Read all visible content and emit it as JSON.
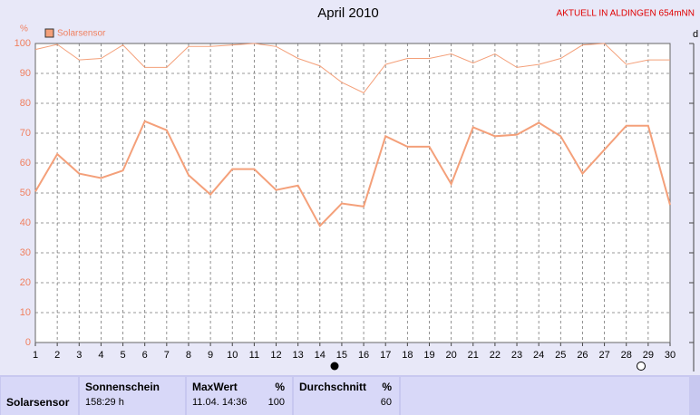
{
  "chart_data": {
    "type": "line",
    "title": "April 2010",
    "ylabel": "%",
    "y2label": "d",
    "x": [
      1,
      2,
      3,
      4,
      5,
      6,
      7,
      8,
      9,
      10,
      11,
      12,
      13,
      14,
      15,
      16,
      17,
      18,
      19,
      20,
      21,
      22,
      23,
      24,
      25,
      26,
      27,
      28,
      29,
      30
    ],
    "xlim": [
      1,
      30
    ],
    "xticks": [
      1,
      2,
      3,
      4,
      5,
      6,
      7,
      8,
      9,
      10,
      11,
      12,
      13,
      14,
      15,
      16,
      17,
      18,
      19,
      20,
      21,
      22,
      23,
      24,
      25,
      26,
      27,
      28,
      29,
      30
    ],
    "ylim": [
      0,
      100
    ],
    "yticks": [
      0,
      10,
      20,
      30,
      40,
      50,
      60,
      70,
      80,
      90,
      100
    ],
    "grid": true,
    "series": [
      {
        "name": "Solarsensor",
        "color": "#f4a07a",
        "values": [
          50.5,
          63,
          56.5,
          55,
          57.5,
          74,
          71,
          56,
          49.5,
          58,
          58,
          51,
          52.5,
          39,
          46.5,
          45.5,
          69,
          65.5,
          65.5,
          53,
          72,
          69,
          69.5,
          73.5,
          69,
          56.5,
          64.5,
          72.5,
          72.5,
          46
        ]
      },
      {
        "color": "#f4a07a",
        "values": [
          98,
          99.7,
          94.5,
          95,
          99.5,
          92,
          92,
          99,
          99,
          99.5,
          100,
          99,
          95,
          92.5,
          87,
          83.5,
          93,
          95,
          95,
          96.5,
          93.5,
          96.5,
          92,
          93,
          95,
          99.5,
          100,
          93,
          94.5,
          94.5
        ]
      }
    ]
  },
  "header": {
    "status": "AKTUELL IN ALDINGEN 654mNN"
  },
  "table": {
    "row_label": "Solarsensor",
    "cells": [
      {
        "header": "Sonnenschein",
        "value": "158:29 h"
      },
      {
        "header": "MaxWert",
        "unit": "%",
        "time": "11.04. 14:36",
        "value": 100
      },
      {
        "header": "Durchschnitt",
        "unit": "%",
        "value": 60
      }
    ]
  }
}
